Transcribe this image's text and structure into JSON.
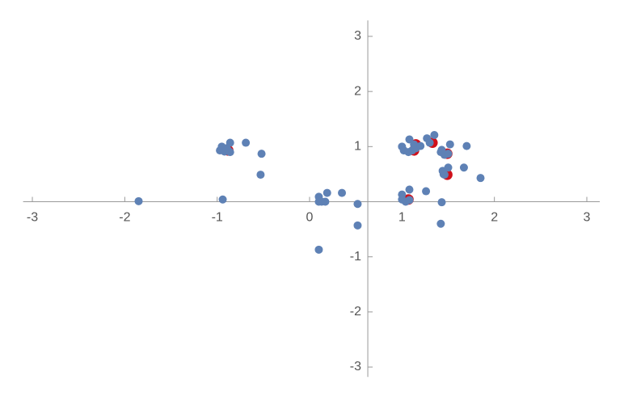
{
  "chart_data": {
    "type": "scatter",
    "xlim": [
      -3.1,
      3.14
    ],
    "ylim": [
      -3.18,
      3.29
    ],
    "xticks": [
      -3,
      -2,
      -1,
      0,
      1,
      2,
      3
    ],
    "yticks": [
      -3,
      -2,
      -1,
      1,
      2,
      3
    ],
    "axes_origin": [
      0.63,
      0
    ],
    "series": [
      {
        "color": "#d0101a",
        "x": [
          1.07,
          1.15,
          1.13,
          1.49,
          1.49,
          1.33,
          -0.88
        ],
        "y": [
          0.04,
          1.04,
          0.93,
          0.87,
          0.49,
          1.07,
          0.93
        ]
      },
      {
        "color": "#5e81b5",
        "x": [
          -1.85,
          -0.94,
          -0.95,
          -0.97,
          -0.92,
          -0.88,
          -0.86,
          -0.9,
          -0.86,
          -0.69,
          -0.52,
          -0.53,
          0.1,
          0.1,
          0.13,
          0.17,
          0.19,
          0.35,
          0.52,
          0.52,
          0.1,
          1.0,
          1.0,
          1.04,
          1.08,
          1.08,
          1.26,
          1.0,
          1.02,
          1.07,
          1.11,
          1.15,
          1.08,
          1.13,
          1.2,
          1.27,
          1.3,
          1.35,
          1.42,
          1.46,
          1.5,
          1.43,
          1.52,
          1.7,
          1.44,
          1.46,
          1.45,
          1.5,
          1.67,
          1.85,
          1.43,
          1.42
        ],
        "y": [
          0.01,
          0.04,
          1.0,
          0.93,
          0.91,
          0.93,
          0.9,
          0.97,
          1.07,
          1.07,
          0.87,
          0.49,
          0.09,
          0.0,
          0.0,
          0.0,
          0.16,
          0.16,
          -0.04,
          -0.43,
          -0.87,
          0.13,
          0.04,
          0.0,
          0.03,
          0.22,
          0.19,
          1.0,
          0.93,
          0.9,
          0.93,
          0.97,
          1.13,
          1.04,
          1.01,
          1.15,
          1.07,
          1.21,
          0.9,
          0.85,
          0.87,
          0.94,
          1.04,
          1.01,
          0.56,
          0.49,
          0.5,
          0.62,
          0.62,
          0.43,
          -0.01,
          -0.4
        ]
      }
    ]
  }
}
